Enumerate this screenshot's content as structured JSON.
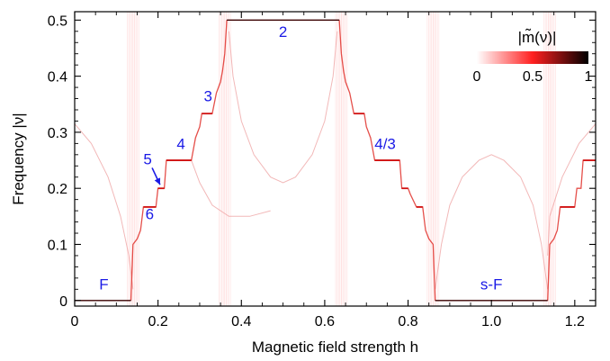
{
  "chart_data": {
    "type": "line",
    "xlabel": "Magnetic field strength h",
    "ylabel": "Frequency |ν|",
    "xlim": [
      0,
      1.25
    ],
    "ylim": [
      -0.01,
      0.515
    ],
    "x_ticks": [
      0,
      0.2,
      0.4,
      0.6,
      0.8,
      1.0,
      1.2
    ],
    "x_tick_labels": [
      "0",
      "0.2",
      "0.4",
      "0.6",
      "0.8",
      "1.0",
      "1.2"
    ],
    "y_ticks": [
      0,
      0.1,
      0.2,
      0.3,
      0.4,
      0.5
    ],
    "y_tick_labels": [
      "0",
      "0.1",
      "0.2",
      "0.3",
      "0.4",
      "0.5"
    ],
    "colorbar": {
      "title": "|m̃(ν)|",
      "range": [
        0,
        1
      ],
      "tick_labels": [
        "0",
        "0.5",
        "1"
      ],
      "colors": [
        "#ffffff",
        "#ff2020",
        "#000000"
      ]
    },
    "plateau_color": "#d01010",
    "label_color": "#1a1ae6",
    "plateaus": [
      {
        "label": "F",
        "h_start": 0.0,
        "h_end": 0.135,
        "frequency": 0.0,
        "label_h": 0.07,
        "label_freq": 0.02
      },
      {
        "label": "6",
        "h_start": 0.165,
        "h_end": 0.195,
        "frequency": 0.1667,
        "label_h": 0.18,
        "label_freq": 0.145
      },
      {
        "label": "5",
        "h_start": 0.2,
        "h_end": 0.215,
        "frequency": 0.2,
        "label_h": 0.175,
        "label_freq": 0.243
      },
      {
        "label": "4",
        "h_start": 0.22,
        "h_end": 0.28,
        "frequency": 0.25,
        "label_h": 0.255,
        "label_freq": 0.27
      },
      {
        "label": "3",
        "h_start": 0.305,
        "h_end": 0.33,
        "frequency": 0.3333,
        "label_h": 0.32,
        "label_freq": 0.355
      },
      {
        "label": "2",
        "h_start": 0.365,
        "h_end": 0.635,
        "frequency": 0.5,
        "label_h": 0.5,
        "label_freq": 0.47
      },
      {
        "label": "4/3",
        "h_start": 0.72,
        "h_end": 0.78,
        "frequency": 0.25,
        "label_h": 0.745,
        "label_freq": 0.27
      },
      {
        "label": "s-F",
        "h_start": 0.865,
        "h_end": 1.135,
        "frequency": 0.0,
        "label_h": 1.0,
        "label_freq": 0.02
      }
    ],
    "minor_plateaus": [
      {
        "h_start": 0.82,
        "h_end": 0.835,
        "frequency": 0.1667
      },
      {
        "h_start": 0.785,
        "h_end": 0.8,
        "frequency": 0.2
      },
      {
        "h_start": 0.67,
        "h_end": 0.695,
        "frequency": 0.3333
      },
      {
        "h_start": 1.165,
        "h_end": 1.2,
        "frequency": 0.1667
      },
      {
        "h_start": 1.22,
        "h_end": 1.25,
        "frequency": 0.25
      }
    ],
    "staircase_left": [
      [
        0.135,
        0.0
      ],
      [
        0.14,
        0.1
      ],
      [
        0.15,
        0.11
      ],
      [
        0.158,
        0.125
      ],
      [
        0.165,
        0.1667
      ],
      [
        0.195,
        0.1667
      ],
      [
        0.2,
        0.2
      ],
      [
        0.215,
        0.2
      ],
      [
        0.22,
        0.25
      ],
      [
        0.28,
        0.25
      ],
      [
        0.29,
        0.29
      ],
      [
        0.3,
        0.31
      ],
      [
        0.305,
        0.3333
      ],
      [
        0.33,
        0.3333
      ],
      [
        0.34,
        0.37
      ],
      [
        0.35,
        0.39
      ],
      [
        0.355,
        0.41
      ],
      [
        0.36,
        0.44
      ],
      [
        0.365,
        0.5
      ]
    ],
    "staircase_right": [
      [
        0.635,
        0.5
      ],
      [
        0.64,
        0.44
      ],
      [
        0.645,
        0.41
      ],
      [
        0.65,
        0.39
      ],
      [
        0.66,
        0.37
      ],
      [
        0.67,
        0.3333
      ],
      [
        0.695,
        0.3333
      ],
      [
        0.7,
        0.31
      ],
      [
        0.71,
        0.29
      ],
      [
        0.72,
        0.25
      ],
      [
        0.78,
        0.25
      ],
      [
        0.785,
        0.2
      ],
      [
        0.8,
        0.2
      ],
      [
        0.805,
        0.19
      ],
      [
        0.82,
        0.1667
      ],
      [
        0.835,
        0.1667
      ],
      [
        0.842,
        0.125
      ],
      [
        0.85,
        0.11
      ],
      [
        0.86,
        0.1
      ],
      [
        0.865,
        0.0
      ]
    ],
    "staircase_far_right": [
      [
        1.135,
        0.0
      ],
      [
        1.14,
        0.1
      ],
      [
        1.15,
        0.11
      ],
      [
        1.158,
        0.125
      ],
      [
        1.165,
        0.1667
      ],
      [
        1.2,
        0.1667
      ],
      [
        1.205,
        0.2
      ],
      [
        1.215,
        0.2
      ],
      [
        1.22,
        0.25
      ],
      [
        1.25,
        0.25
      ]
    ],
    "faint_arcs": [
      {
        "points": [
          [
            0.0,
            0.315
          ],
          [
            0.04,
            0.28
          ],
          [
            0.08,
            0.22
          ],
          [
            0.11,
            0.15
          ],
          [
            0.13,
            0.08
          ],
          [
            0.14,
            0.02
          ]
        ]
      },
      {
        "points": [
          [
            0.28,
            0.25
          ],
          [
            0.3,
            0.21
          ],
          [
            0.33,
            0.17
          ],
          [
            0.37,
            0.15
          ],
          [
            0.42,
            0.15
          ],
          [
            0.47,
            0.16
          ]
        ]
      },
      {
        "points": [
          [
            0.37,
            0.48
          ],
          [
            0.38,
            0.4
          ],
          [
            0.4,
            0.32
          ],
          [
            0.43,
            0.26
          ],
          [
            0.47,
            0.22
          ],
          [
            0.5,
            0.21
          ],
          [
            0.53,
            0.22
          ],
          [
            0.57,
            0.26
          ],
          [
            0.6,
            0.32
          ],
          [
            0.62,
            0.4
          ],
          [
            0.63,
            0.48
          ]
        ]
      },
      {
        "points": [
          [
            0.865,
            0.02
          ],
          [
            0.88,
            0.1
          ],
          [
            0.9,
            0.17
          ],
          [
            0.93,
            0.22
          ],
          [
            0.97,
            0.25
          ],
          [
            1.0,
            0.26
          ],
          [
            1.03,
            0.25
          ],
          [
            1.07,
            0.22
          ],
          [
            1.1,
            0.17
          ],
          [
            1.12,
            0.1
          ],
          [
            1.135,
            0.02
          ]
        ]
      },
      {
        "points": [
          [
            1.25,
            0.315
          ],
          [
            1.21,
            0.28
          ],
          [
            1.17,
            0.22
          ],
          [
            1.14,
            0.15
          ],
          [
            1.135,
            0.08
          ]
        ]
      }
    ]
  }
}
